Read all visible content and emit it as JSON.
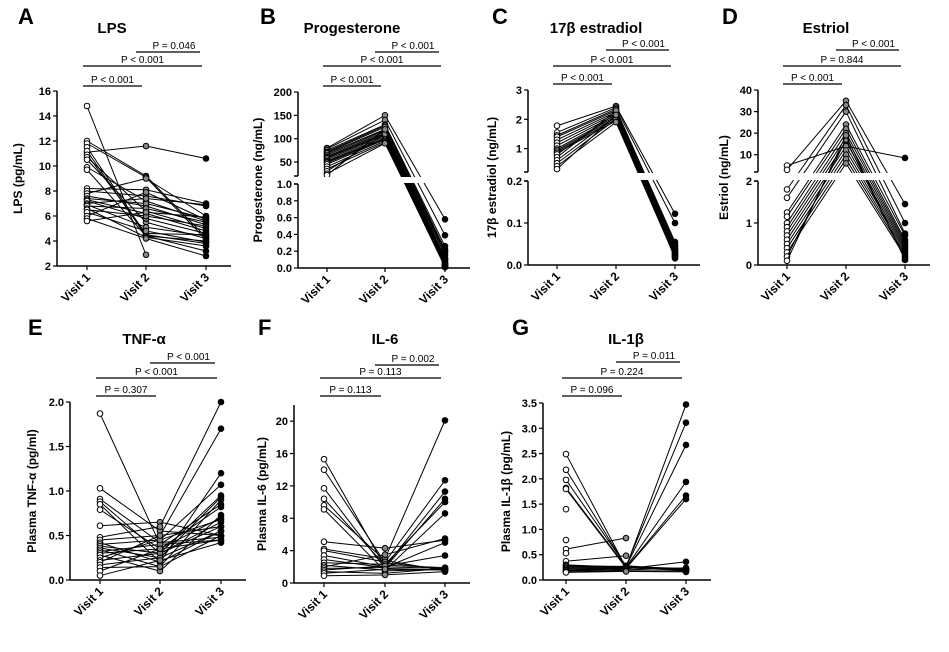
{
  "chart_data": [
    {
      "panel": "A",
      "type": "line",
      "title": "LPS",
      "ylabel": "LPS (pg/mL)",
      "categories": [
        "Visit 1",
        "Visit 2",
        "Visit 3"
      ],
      "ylim": [
        2,
        16
      ],
      "yticks": [
        "2",
        "4",
        "6",
        "8",
        "10",
        "12",
        "14",
        "16"
      ],
      "pvalues": [
        {
          "from": "Visit 1",
          "to": "Visit 2",
          "text": "P < 0.001"
        },
        {
          "from": "Visit 1",
          "to": "Visit 3",
          "text": "P < 0.001"
        },
        {
          "from": "Visit 2",
          "to": "Visit 3",
          "text": "P = 0.046"
        }
      ],
      "series": [
        [
          14.8,
          2.9,
          null
        ],
        [
          11.1,
          11.6,
          10.6
        ],
        [
          12.0,
          9.2,
          4.3
        ],
        [
          11.8,
          9.1,
          4.1
        ],
        [
          11.5,
          4.5,
          3.8
        ],
        [
          11.2,
          4.4,
          4.0
        ],
        [
          10.9,
          4.6,
          4.5
        ],
        [
          10.7,
          6.4,
          5.0
        ],
        [
          10.5,
          5.5,
          4.2
        ],
        [
          9.9,
          7.2,
          5.6
        ],
        [
          9.7,
          4.4,
          3.2
        ],
        [
          8.2,
          8.1,
          7.0
        ],
        [
          8.0,
          7.6,
          6.8
        ],
        [
          7.8,
          9.0,
          6.0
        ],
        [
          7.6,
          6.8,
          5.3
        ],
        [
          7.4,
          7.0,
          5.8
        ],
        [
          7.3,
          6.2,
          4.8
        ],
        [
          7.2,
          5.8,
          4.6
        ],
        [
          7.0,
          7.4,
          6.9
        ],
        [
          6.9,
          5.1,
          4.4
        ],
        [
          6.8,
          6.6,
          5.5
        ],
        [
          6.6,
          4.3,
          3.6
        ],
        [
          6.5,
          6.0,
          5.2
        ],
        [
          6.3,
          4.8,
          3.9
        ],
        [
          6.0,
          7.9,
          5.7
        ],
        [
          5.8,
          4.2,
          2.8
        ],
        [
          5.6,
          6.3,
          5.9
        ]
      ]
    },
    {
      "panel": "B",
      "type": "line",
      "title": "Progesterone",
      "ylabel": "Progesterone (ng/mL)",
      "categories": [
        "Visit 1",
        "Visit 2",
        "Visit 3"
      ],
      "broken_axis": {
        "upper": [
          20,
          200
        ],
        "lower": [
          0,
          1.0
        ]
      },
      "yticks_upper": [
        "50",
        "100",
        "150",
        "200"
      ],
      "yticks_lower": [
        "0.0",
        "0.2",
        "0.4",
        "0.6",
        "0.8",
        "1.0"
      ],
      "pvalues": [
        {
          "from": "Visit 1",
          "to": "Visit 2",
          "text": "P < 0.001"
        },
        {
          "from": "Visit 1",
          "to": "Visit 3",
          "text": "P < 0.001"
        },
        {
          "from": "Visit 2",
          "to": "Visit 3",
          "text": "P < 0.001"
        }
      ],
      "series": [
        [
          80,
          150,
          0.58
        ],
        [
          78,
          140,
          0.39
        ],
        [
          75,
          130,
          0.26
        ],
        [
          72,
          128,
          0.22
        ],
        [
          70,
          125,
          0.2
        ],
        [
          68,
          120,
          0.18
        ],
        [
          65,
          118,
          0.15
        ],
        [
          62,
          115,
          0.12
        ],
        [
          60,
          112,
          0.1
        ],
        [
          58,
          110,
          0.08
        ],
        [
          55,
          108,
          0.06
        ],
        [
          52,
          105,
          0.05
        ],
        [
          50,
          102,
          0.04
        ],
        [
          48,
          100,
          0.03
        ],
        [
          45,
          98,
          0.02
        ],
        [
          40,
          95,
          0.02
        ],
        [
          35,
          92,
          0.01
        ],
        [
          30,
          110,
          0.05
        ],
        [
          25,
          90,
          0.03
        ],
        [
          22,
          120,
          0.1
        ]
      ]
    },
    {
      "panel": "C",
      "type": "line",
      "title": "17β estradiol",
      "ylabel": "17β estradiol (ng/mL)",
      "categories": [
        "Visit 1",
        "Visit 2",
        "Visit 3"
      ],
      "broken_axis": {
        "upper": [
          0.2,
          3
        ],
        "lower": [
          0,
          0.2
        ]
      },
      "yticks_upper": [
        "1",
        "2",
        "3"
      ],
      "yticks_lower": [
        "0.0",
        "0.1",
        "0.2"
      ],
      "pvalues": [
        {
          "from": "Visit 1",
          "to": "Visit 2",
          "text": "P < 0.001"
        },
        {
          "from": "Visit 1",
          "to": "Visit 3",
          "text": "P < 0.001"
        },
        {
          "from": "Visit 2",
          "to": "Visit 3",
          "text": "P < 0.001"
        }
      ],
      "series": [
        [
          1.78,
          2.45,
          0.122
        ],
        [
          1.55,
          2.4,
          0.1
        ],
        [
          1.45,
          2.35,
          0.055
        ],
        [
          1.4,
          2.3,
          0.05
        ],
        [
          1.3,
          2.25,
          0.045
        ],
        [
          1.2,
          2.2,
          0.04
        ],
        [
          1.1,
          2.15,
          0.038
        ],
        [
          1.0,
          2.1,
          0.035
        ],
        [
          0.95,
          2.05,
          0.032
        ],
        [
          0.9,
          2.0,
          0.03
        ],
        [
          0.85,
          1.95,
          0.028
        ],
        [
          0.8,
          2.2,
          0.026
        ],
        [
          0.7,
          2.3,
          0.025
        ],
        [
          0.6,
          2.1,
          0.022
        ],
        [
          0.5,
          2.0,
          0.02
        ],
        [
          0.4,
          1.9,
          0.018
        ],
        [
          0.3,
          2.15,
          0.016
        ]
      ]
    },
    {
      "panel": "D",
      "type": "line",
      "title": "Estriol",
      "ylabel": "Estriol (ng/mL)",
      "categories": [
        "Visit 1",
        "Visit 2",
        "Visit 3"
      ],
      "broken_axis": {
        "upper": [
          2,
          40
        ],
        "lower": [
          0,
          2
        ]
      },
      "yticks_upper": [
        "10",
        "20",
        "30",
        "40"
      ],
      "yticks_lower": [
        "0",
        "1",
        "2"
      ],
      "pvalues": [
        {
          "from": "Visit 1",
          "to": "Visit 2",
          "text": "P < 0.001"
        },
        {
          "from": "Visit 1",
          "to": "Visit 3",
          "text": "P = 0.844"
        },
        {
          "from": "Visit 2",
          "to": "Visit 3",
          "text": "P < 0.001"
        }
      ],
      "series": [
        [
          5,
          14,
          8.5
        ],
        [
          3,
          35,
          1.45
        ],
        [
          1.8,
          33,
          1.0
        ],
        [
          1.6,
          30,
          0.75
        ],
        [
          1.25,
          24,
          0.7
        ],
        [
          1.15,
          22,
          0.6
        ],
        [
          1.0,
          20,
          0.55
        ],
        [
          0.9,
          18,
          0.5
        ],
        [
          0.8,
          16,
          0.45
        ],
        [
          0.7,
          14,
          0.4
        ],
        [
          0.6,
          12,
          0.35
        ],
        [
          0.5,
          10,
          0.3
        ],
        [
          0.4,
          8,
          0.25
        ],
        [
          0.3,
          6,
          0.2
        ],
        [
          0.2,
          17,
          0.15
        ],
        [
          0.1,
          19,
          0.12
        ]
      ]
    },
    {
      "panel": "E",
      "type": "line",
      "title": "TNF-α",
      "ylabel": "Plasma TNF-α (pg/ml)",
      "categories": [
        "Visit 1",
        "Visit 2",
        "Visit 3"
      ],
      "ylim": [
        0,
        2.0
      ],
      "yticks": [
        "0.0",
        "0.5",
        "1.0",
        "1.5",
        "2.0"
      ],
      "pvalues": [
        {
          "from": "Visit 1",
          "to": "Visit 2",
          "text": "P = 0.307"
        },
        {
          "from": "Visit 1",
          "to": "Visit 3",
          "text": "P < 0.001"
        },
        {
          "from": "Visit 2",
          "to": "Visit 3",
          "text": "P < 0.001"
        }
      ],
      "series": [
        [
          1.87,
          0.4,
          0.45
        ],
        [
          1.03,
          0.55,
          0.5
        ],
        [
          0.91,
          0.42,
          0.48
        ],
        [
          0.88,
          0.3,
          0.6
        ],
        [
          0.85,
          0.2,
          0.55
        ],
        [
          0.79,
          0.35,
          0.7
        ],
        [
          0.61,
          0.65,
          0.5
        ],
        [
          0.48,
          0.6,
          2.0
        ],
        [
          0.45,
          0.5,
          1.7
        ],
        [
          0.42,
          0.2,
          1.2
        ],
        [
          0.4,
          0.45,
          1.07
        ],
        [
          0.38,
          0.3,
          0.95
        ],
        [
          0.36,
          0.25,
          0.93
        ],
        [
          0.34,
          0.15,
          0.9
        ],
        [
          0.32,
          0.4,
          0.85
        ],
        [
          0.3,
          0.35,
          0.82
        ],
        [
          0.28,
          0.1,
          0.73
        ],
        [
          0.25,
          0.45,
          0.68
        ],
        [
          0.22,
          0.3,
          0.65
        ],
        [
          0.2,
          0.5,
          0.6
        ],
        [
          0.17,
          0.25,
          0.55
        ],
        [
          0.14,
          0.15,
          0.5
        ],
        [
          0.1,
          0.35,
          0.45
        ],
        [
          0.05,
          0.22,
          0.42
        ]
      ]
    },
    {
      "panel": "F",
      "type": "line",
      "title": "IL-6",
      "ylabel": "Plasma IL-6 (pg/mL)",
      "categories": [
        "Visit 1",
        "Visit 2",
        "Visit 3"
      ],
      "ylim": [
        0,
        22
      ],
      "yticks": [
        "0",
        "4",
        "8",
        "12",
        "16",
        "20"
      ],
      "pvalues": [
        {
          "from": "Visit 1",
          "to": "Visit 2",
          "text": "P = 0.113"
        },
        {
          "from": "Visit 1",
          "to": "Visit 3",
          "text": "P = 0.113"
        },
        {
          "from": "Visit 2",
          "to": "Visit 3",
          "text": "P = 0.002"
        }
      ],
      "series": [
        [
          15.3,
          2.0,
          1.8
        ],
        [
          14.0,
          2.5,
          1.7
        ],
        [
          11.7,
          1.8,
          1.6
        ],
        [
          10.4,
          2.2,
          1.9
        ],
        [
          9.6,
          2.8,
          1.5
        ],
        [
          9.1,
          1.5,
          1.7
        ],
        [
          5.1,
          4.3,
          5.3
        ],
        [
          4.2,
          3.0,
          20.1
        ],
        [
          4.0,
          2.6,
          12.7
        ],
        [
          3.4,
          2.0,
          11.3
        ],
        [
          2.9,
          1.9,
          10.4
        ],
        [
          2.5,
          2.3,
          10.0
        ],
        [
          2.2,
          1.6,
          8.6
        ],
        [
          2.0,
          3.5,
          5.5
        ],
        [
          1.8,
          1.9,
          5.0
        ],
        [
          1.6,
          2.1,
          3.4
        ],
        [
          1.4,
          1.2,
          1.8
        ],
        [
          1.2,
          1.7,
          1.6
        ],
        [
          0.9,
          1.0,
          1.4
        ]
      ]
    },
    {
      "panel": "G",
      "type": "line",
      "title": "IL-1β",
      "ylabel": "Plasma IL-1β (pg/mL)",
      "categories": [
        "Visit 1",
        "Visit 2",
        "Visit 3"
      ],
      "ylim": [
        0,
        3.5
      ],
      "yticks": [
        "0.0",
        "0.5",
        "1.0",
        "1.5",
        "2.0",
        "2.5",
        "3.0",
        "3.5"
      ],
      "pvalues": [
        {
          "from": "Visit 1",
          "to": "Visit 2",
          "text": "P = 0.096"
        },
        {
          "from": "Visit 1",
          "to": "Visit 3",
          "text": "P = 0.224"
        },
        {
          "from": "Visit 2",
          "to": "Visit 3",
          "text": "P = 0.011"
        }
      ],
      "series": [
        [
          2.49,
          0.25,
          0.22
        ],
        [
          2.18,
          0.27,
          0.2
        ],
        [
          1.98,
          0.28,
          0.21
        ],
        [
          1.82,
          0.26,
          0.23
        ],
        [
          1.8,
          0.24,
          0.19
        ],
        [
          1.4,
          null,
          null
        ],
        [
          0.79,
          null,
          null
        ],
        [
          0.61,
          0.83,
          null
        ],
        [
          0.53,
          null,
          null
        ],
        [
          0.37,
          0.48,
          null
        ],
        [
          0.3,
          0.25,
          3.47
        ],
        [
          0.28,
          0.27,
          3.11
        ],
        [
          0.26,
          0.26,
          2.67
        ],
        [
          0.24,
          0.25,
          1.94
        ],
        [
          0.22,
          0.24,
          1.67
        ],
        [
          0.2,
          0.23,
          1.6
        ],
        [
          0.19,
          0.22,
          0.36
        ],
        [
          0.18,
          0.2,
          0.24
        ],
        [
          0.16,
          0.18,
          0.18
        ],
        [
          0.15,
          0.17,
          0.16
        ]
      ]
    }
  ]
}
